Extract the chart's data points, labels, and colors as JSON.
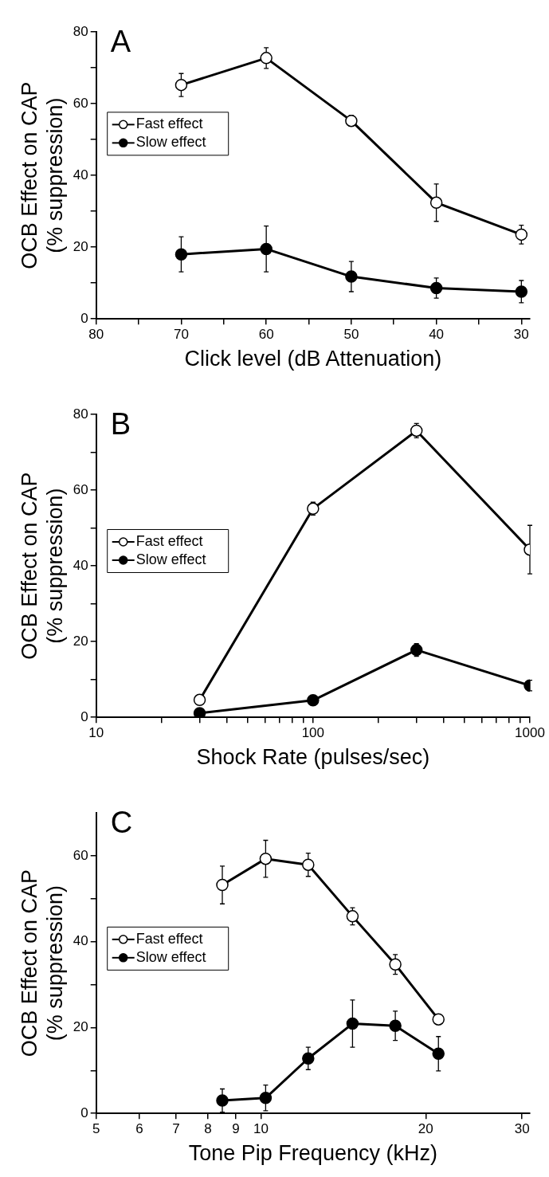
{
  "chart_data": [
    {
      "type": "line",
      "title": "A",
      "xlabel": "Click level (dB Attenuation)",
      "ylabel": "OCB Effect on CAP\n(% suppression)",
      "x": [
        70,
        60,
        50,
        40,
        30
      ],
      "series": [
        {
          "name": "Fast effect",
          "color": "#000000",
          "values": [
            65.2,
            72.7,
            55.2,
            32.4,
            23.5
          ],
          "errors": [
            3.2,
            2.9,
            1.5,
            5.2,
            2.6
          ]
        },
        {
          "name": "Slow effect",
          "color": "#000000",
          "values": [
            18.0,
            19.5,
            11.8,
            8.6,
            7.6
          ],
          "errors": [
            4.9,
            6.4,
            4.2,
            2.8,
            3.1
          ]
        }
      ],
      "xlim": [
        80,
        29
      ],
      "xticks": [
        80,
        {
          "value": 75,
          "label": null
        },
        70,
        {
          "value": 65,
          "label": null
        },
        60,
        {
          "value": 55,
          "label": null
        },
        50,
        {
          "value": 45,
          "label": null
        },
        40,
        {
          "value": 35,
          "label": null
        },
        30
      ],
      "ylim": [
        0,
        80
      ],
      "yticks": [
        0,
        {
          "value": 10,
          "label": null
        },
        20,
        {
          "value": 30,
          "label": null
        },
        40,
        {
          "value": 50,
          "label": null
        },
        60,
        {
          "value": 70,
          "label": null
        },
        80
      ],
      "marker": "circle",
      "legend": "top left"
    },
    {
      "type": "line",
      "title": "B",
      "xlabel": "Shock Rate (pulses/sec)",
      "ylabel": "OCB Effect on CAP\n(% suppression)",
      "x": [
        30,
        100,
        300,
        1000
      ],
      "series": [
        {
          "name": "Fast effect",
          "color": "#000000",
          "values": [
            4.6,
            55.1,
            75.7,
            44.3
          ],
          "errors": [
            null,
            1.7,
            1.9,
            6.4
          ]
        },
        {
          "name": "Slow effect",
          "color": "#000000",
          "values": [
            1.1,
            4.5,
            17.8,
            8.4
          ],
          "errors": [
            null,
            null,
            1.7,
            1.4
          ]
        }
      ],
      "log": "x",
      "xlim": [
        10,
        1000
      ],
      "xticks": [
        10,
        {
          "value": 20,
          "label": null
        },
        {
          "value": 30,
          "label": null
        },
        {
          "value": 40,
          "label": null
        },
        {
          "value": 50,
          "label": null
        },
        {
          "value": 60,
          "label": null
        },
        {
          "value": 70,
          "label": null
        },
        {
          "value": 80,
          "label": null
        },
        {
          "value": 90,
          "label": null
        },
        100,
        {
          "value": 200,
          "label": null
        },
        {
          "value": 300,
          "label": null
        },
        {
          "value": 400,
          "label": null
        },
        {
          "value": 500,
          "label": null
        },
        {
          "value": 600,
          "label": null
        },
        {
          "value": 700,
          "label": null
        },
        {
          "value": 800,
          "label": null
        },
        {
          "value": 900,
          "label": null
        },
        1000
      ],
      "ylim": [
        0,
        80
      ],
      "yticks": [
        0,
        {
          "value": 10,
          "label": null
        },
        20,
        {
          "value": 30,
          "label": null
        },
        40,
        {
          "value": 50,
          "label": null
        },
        60,
        {
          "value": 70,
          "label": null
        },
        80
      ],
      "marker": "circle",
      "legend": "left"
    },
    {
      "type": "line",
      "title": "C",
      "xlabel": "Tone Pip Frequency (kHz)",
      "ylabel": "OCB Effect on CAP\n(% suppression)",
      "x": [
        8.5,
        10.2,
        12.2,
        14.7,
        17.6,
        21.1
      ],
      "series": [
        {
          "name": "Fast effect",
          "color": "#000000",
          "values": [
            53.2,
            59.3,
            57.9,
            45.9,
            34.7,
            21.9
          ],
          "errors": [
            4.4,
            4.3,
            2.7,
            2.0,
            2.3,
            1.0
          ]
        },
        {
          "name": "Slow effect",
          "color": "#000000",
          "values": [
            3.0,
            3.6,
            12.8,
            20.9,
            20.4,
            13.9
          ],
          "errors": [
            2.7,
            3.0,
            2.6,
            5.5,
            3.4,
            4.0
          ]
        }
      ],
      "log": "x",
      "xlim": [
        5,
        31
      ],
      "xticks": [
        5,
        6,
        7,
        8,
        9,
        10,
        20,
        30
      ],
      "ylim": [
        0,
        70
      ],
      "yticks": [
        0,
        {
          "value": 10,
          "label": null
        },
        20,
        {
          "value": 30,
          "label": null
        },
        40,
        {
          "value": 50,
          "label": null
        },
        60
      ],
      "marker": "circle",
      "legend": "left"
    }
  ]
}
